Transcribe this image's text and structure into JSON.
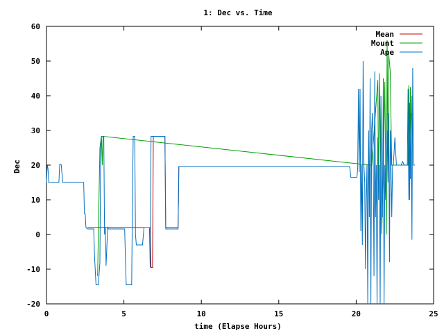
{
  "chart_data": {
    "type": "line",
    "title": "1: Dec vs. Time",
    "xlabel": "time (Elapse Hours)",
    "ylabel": "Dec",
    "xlim": [
      0,
      25
    ],
    "ylim": [
      -20,
      60
    ],
    "xticks": [
      "0",
      "5",
      "10",
      "15",
      "20",
      "25"
    ],
    "yticks": [
      "-20",
      "-10",
      "0",
      "10",
      "20",
      "30",
      "40",
      "50",
      "60"
    ],
    "legend_position": "top-right",
    "grid": false,
    "series": [
      {
        "name": "Mean",
        "color": "#cc0000",
        "x": [
          2.65,
          3.05,
          3.75,
          5.05,
          6.3,
          6.7,
          6.75,
          6.85,
          6.9,
          7.0,
          7.05,
          7.65,
          7.7,
          8.5,
          8.55,
          9.95
        ],
        "y": [
          2,
          2,
          2,
          2,
          2,
          2,
          -9.5,
          -9.5,
          28.3,
          28.3,
          28.3,
          28.3,
          2,
          2,
          19.6,
          19.6
        ]
      },
      {
        "name": "Mount",
        "color": "#00a000",
        "x": [
          3.3,
          3.45,
          3.55,
          3.6,
          3.65,
          20.9,
          21.0,
          21.4,
          21.45,
          21.5,
          21.65,
          21.75,
          21.85,
          21.95,
          22.0,
          22.05,
          22.1,
          22.2,
          22.3,
          23.35,
          23.4,
          23.45,
          23.5,
          23.55,
          23.6
        ],
        "y": [
          -12,
          25,
          28.3,
          20,
          28.3,
          20,
          20,
          44.5,
          10,
          46.5,
          0,
          20,
          44,
          0,
          56,
          20,
          52,
          47,
          20,
          20,
          43,
          10,
          42.5,
          25,
          40
        ]
      },
      {
        "name": "Ape",
        "color": "#0070c0",
        "x": [
          0.0,
          0.05,
          0.1,
          0.15,
          0.2,
          0.8,
          0.85,
          0.95,
          1.05,
          1.15,
          2.4,
          2.45,
          2.5,
          2.55,
          2.65,
          3.05,
          3.1,
          3.2,
          3.25,
          3.35,
          3.45,
          3.5,
          3.55,
          3.6,
          3.7,
          3.75,
          3.8,
          3.85,
          3.95,
          4.0,
          5.05,
          5.1,
          5.15,
          5.5,
          5.55,
          5.6,
          5.7,
          5.75,
          5.8,
          5.9,
          6.2,
          6.3,
          6.65,
          6.7,
          6.75,
          6.85,
          7.05,
          7.65,
          7.7,
          8.5,
          8.55,
          19.55,
          19.6,
          19.65,
          20.05,
          20.1,
          20.15,
          20.2,
          20.25,
          20.3,
          20.35,
          20.4,
          20.45,
          20.5,
          20.55,
          20.6,
          20.65,
          20.7,
          20.75,
          20.8,
          20.85,
          20.9,
          20.95,
          21.0,
          21.05,
          21.1,
          21.15,
          21.2,
          21.25,
          21.3,
          21.35,
          21.4,
          21.45,
          21.5,
          21.55,
          21.6,
          21.65,
          21.7,
          21.75,
          21.8,
          21.85,
          21.9,
          21.95,
          22.0,
          22.05,
          22.1,
          22.15,
          22.2,
          22.25,
          22.3,
          22.35,
          22.4,
          22.5,
          22.6,
          22.7,
          22.8,
          22.9,
          23.0,
          23.1,
          23.2,
          23.3,
          23.35,
          23.4,
          23.45,
          23.5,
          23.55,
          23.6,
          23.65,
          23.7,
          23.75,
          23.8
        ],
        "y": [
          15,
          20,
          19,
          15,
          15,
          15,
          20.2,
          20.2,
          15,
          15,
          15,
          6,
          6,
          2,
          1.6,
          1.6,
          -6,
          -14.5,
          -14.5,
          -14.5,
          -8,
          25,
          28.3,
          28.3,
          28.3,
          0,
          2,
          -9,
          2,
          1.6,
          1.6,
          -7,
          -14.5,
          -14.5,
          10,
          28.3,
          28.3,
          0,
          -3,
          -3,
          -3,
          2,
          2,
          -9.5,
          28.3,
          28.3,
          28.3,
          28.3,
          1.6,
          1.6,
          19.6,
          19.6,
          19,
          16.5,
          16.5,
          19,
          42,
          18,
          42,
          1,
          20,
          -3,
          50,
          20,
          15,
          -10,
          10,
          20,
          -20,
          30,
          5,
          45,
          -20,
          30,
          35,
          20,
          -12,
          47,
          5,
          20,
          -20,
          28,
          10,
          20,
          -20,
          40,
          20,
          5,
          45,
          -20,
          20,
          10,
          20,
          30,
          15,
          35,
          -8,
          30,
          20,
          5,
          20,
          20,
          28,
          20,
          20,
          20,
          20,
          21,
          20,
          20,
          20,
          42,
          10,
          38,
          16,
          35,
          -1.5,
          48,
          20,
          20,
          20
        ]
      }
    ]
  }
}
